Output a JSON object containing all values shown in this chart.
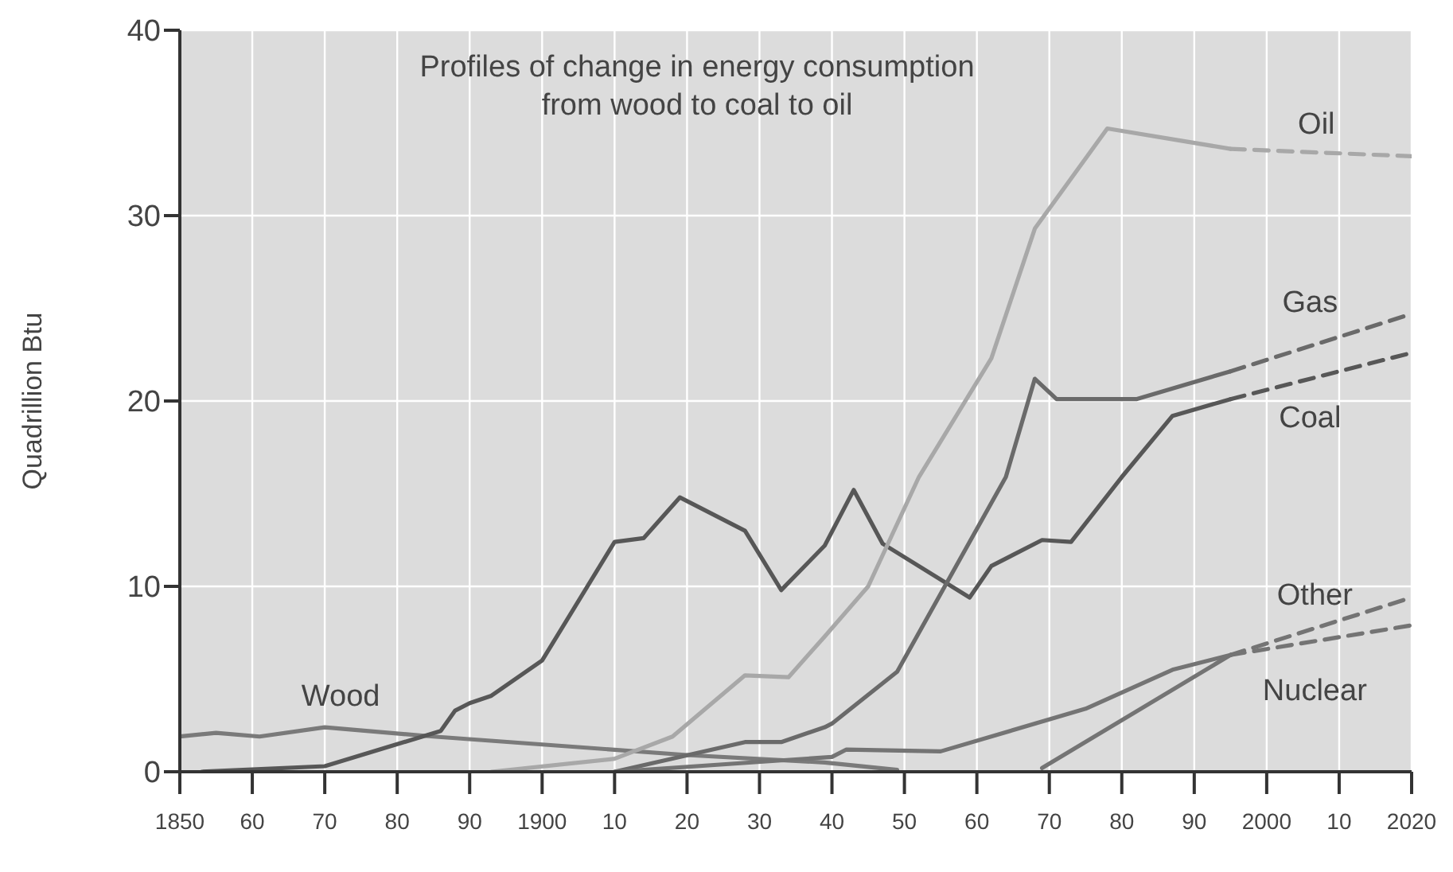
{
  "chart_data": {
    "type": "line",
    "title": "Profiles of change in energy consumption\nfrom wood to coal to oil",
    "ylabel": "Quadrillion Btu",
    "xlim": [
      1850,
      2020
    ],
    "xticks": [
      1850,
      {
        "value": 1860,
        "label": "60"
      },
      {
        "value": 1870,
        "label": "70"
      },
      {
        "value": 1880,
        "label": "80"
      },
      {
        "value": 1890,
        "label": "90"
      },
      1900,
      {
        "value": 1910,
        "label": "10"
      },
      {
        "value": 1920,
        "label": "20"
      },
      {
        "value": 1930,
        "label": "30"
      },
      {
        "value": 1940,
        "label": "40"
      },
      {
        "value": 1950,
        "label": "50"
      },
      {
        "value": 1960,
        "label": "60"
      },
      {
        "value": 1970,
        "label": "70"
      },
      {
        "value": 1980,
        "label": "80"
      },
      {
        "value": 1990,
        "label": "90"
      },
      2000,
      {
        "value": 2010,
        "label": "10"
      },
      2020
    ],
    "ylim": [
      0,
      40
    ],
    "yticks": [
      0,
      10,
      20,
      30,
      40
    ],
    "grid": true,
    "legend": false,
    "marker": "none",
    "line_style": "solid",
    "series": [
      {
        "name": "Wood",
        "color": "#7a7a7a",
        "x": [
          1850,
          1855,
          1861,
          1870,
          1885,
          1920,
          1939,
          1949
        ],
        "values": [
          1.9,
          2.1,
          1.9,
          2.4,
          1.9,
          0.9,
          0.5,
          0.1
        ]
      },
      {
        "name": "Coal",
        "color": "#575757",
        "x": [
          1853,
          1870,
          1886,
          1888,
          1890,
          1893,
          1900,
          1910,
          1914,
          1919,
          1928,
          1933,
          1939,
          1943,
          1947,
          1959,
          1962,
          1969,
          1973,
          1980,
          1987,
          1995
        ],
        "values": [
          0,
          0.3,
          2.2,
          3.3,
          3.7,
          4.1,
          6.0,
          12.4,
          12.6,
          14.8,
          13.0,
          9.8,
          12.2,
          15.2,
          12.3,
          9.4,
          11.1,
          12.5,
          12.4,
          15.9,
          19.2,
          20.1
        ]
      },
      {
        "name": "Gas",
        "color": "#6a6a6a",
        "x": [
          1910,
          1928,
          1933,
          1939,
          1940,
          1949,
          1964,
          1968,
          1971,
          1982,
          1995
        ],
        "values": [
          0,
          1.6,
          1.6,
          2.4,
          2.6,
          5.4,
          15.9,
          21.2,
          20.1,
          20.1,
          21.6
        ]
      },
      {
        "name": "Oil",
        "color": "#a8a8a8",
        "x": [
          1893,
          1910,
          1918,
          1928,
          1934,
          1939,
          1945,
          1952,
          1962,
          1968,
          1978,
          1995
        ],
        "values": [
          0,
          0.7,
          1.9,
          5.2,
          5.1,
          7.3,
          10.0,
          15.9,
          22.3,
          29.3,
          34.7,
          33.6
        ]
      },
      {
        "name": "Other",
        "color": "#747474",
        "x": [
          1910,
          1940,
          1942,
          1955,
          1975,
          1987,
          1995
        ],
        "values": [
          0,
          0.8,
          1.2,
          1.1,
          3.4,
          5.5,
          6.3
        ]
      },
      {
        "name": "Nuclear",
        "color": "#747474",
        "x": [
          1969,
          1995
        ],
        "values": [
          0.2,
          6.3
        ]
      },
      {
        "color": "#575757",
        "line_style": "dashed",
        "x": [
          1995,
          2020
        ],
        "values": [
          20.1,
          22.6
        ]
      },
      {
        "color": "#6a6a6a",
        "line_style": "dashed",
        "x": [
          1995,
          2020
        ],
        "values": [
          21.6,
          24.7
        ]
      },
      {
        "color": "#a8a8a8",
        "line_style": "dashed",
        "x": [
          1995,
          2020
        ],
        "values": [
          33.6,
          33.2
        ]
      },
      {
        "color": "#747474",
        "line_style": "dashed",
        "x": [
          1995,
          2020
        ],
        "values": [
          6.3,
          9.4
        ]
      },
      {
        "color": "#747474",
        "line_style": "dashed",
        "x": [
          1995,
          2020
        ],
        "values": [
          6.3,
          7.9
        ]
      }
    ]
  }
}
